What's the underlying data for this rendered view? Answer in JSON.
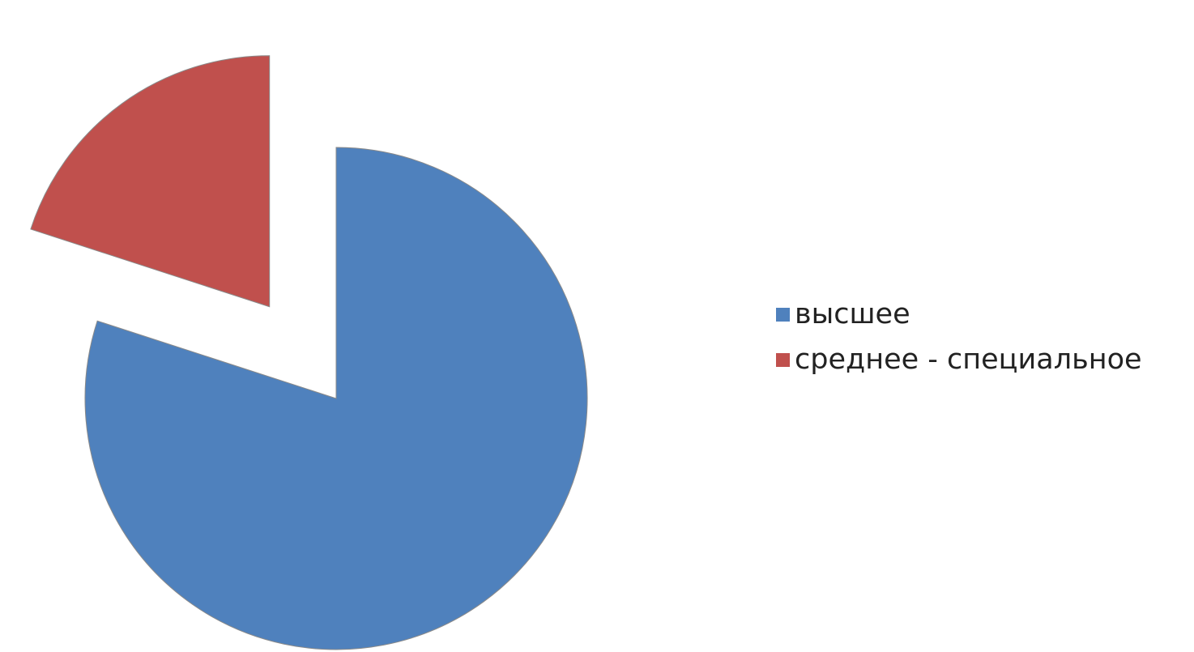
{
  "chart_data": {
    "type": "pie",
    "title": "",
    "legend_position": "right",
    "series": [
      {
        "name": "высшее",
        "value": 80,
        "color": "#4F81BD",
        "exploded": false
      },
      {
        "name": "среднее - специальное",
        "value": 20,
        "color": "#C0504D",
        "exploded": true
      }
    ]
  },
  "legend": {
    "items": [
      {
        "label": "высшее",
        "color": "#4F81BD"
      },
      {
        "label": "среднее - специальное",
        "color": "#C0504D"
      }
    ]
  }
}
